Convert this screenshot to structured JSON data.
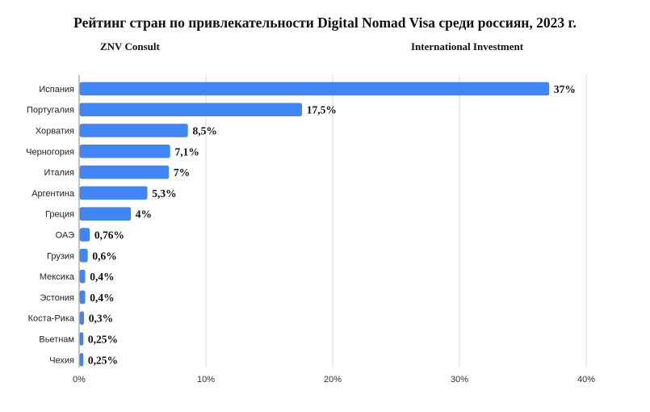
{
  "header": {
    "title": "Рейтинг стран по привлекательности Digital Nomad Visa среди россиян, 2023 г.",
    "left_source": "ZNV Consult",
    "right_source": "International Investment"
  },
  "colors": {
    "bar": "#4285f4",
    "bar_stroke": "#3b78e7",
    "grid": "#d9d9d9",
    "axis": "#8a8a8a"
  },
  "chart_data": {
    "type": "bar",
    "orientation": "horizontal",
    "title": "Рейтинг стран по привлекательности Digital Nomad Visa среди россиян, 2023 г.",
    "categories": [
      "Испания",
      "Португалия",
      "Хорватия",
      "Черногория",
      "Италия",
      "Аргентина",
      "Греция",
      "ОАЭ",
      "Грузия",
      "Мексика",
      "Эстония",
      "Коста-Рика",
      "Вьетнам",
      "Чехия"
    ],
    "values": [
      37,
      17.5,
      8.5,
      7.1,
      7,
      5.3,
      4,
      0.76,
      0.6,
      0.4,
      0.4,
      0.3,
      0.25,
      0.25
    ],
    "value_labels": [
      "37%",
      "17,5%",
      "8,5%",
      "7,1%",
      "7%",
      "5,3%",
      "4%",
      "0,76%",
      "0,6%",
      "0,4%",
      "0,4%",
      "0,3%",
      "0,25%",
      "0,25%"
    ],
    "xlim": [
      0,
      40
    ],
    "x_ticks": [
      0,
      10,
      20,
      30,
      40
    ],
    "x_tick_labels": [
      "0%",
      "10%",
      "20%",
      "30%",
      "40%"
    ],
    "grid": true
  }
}
